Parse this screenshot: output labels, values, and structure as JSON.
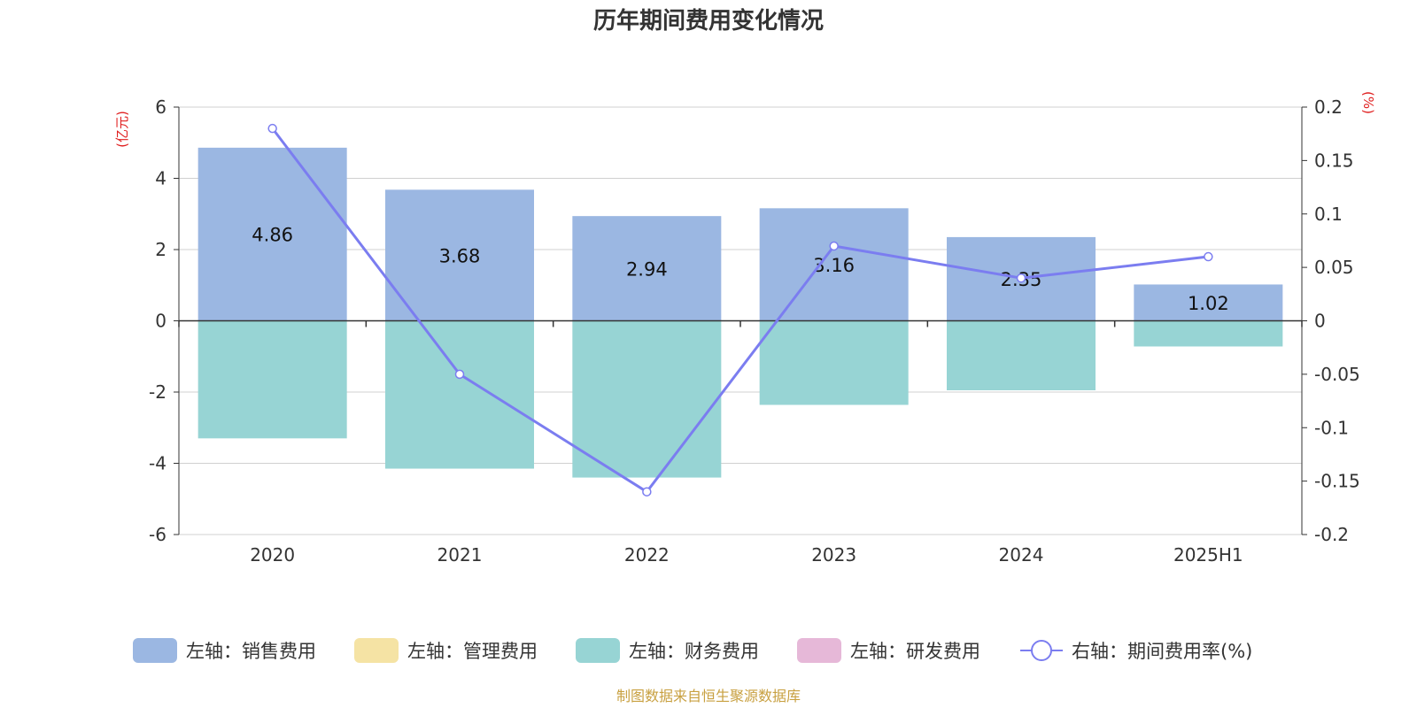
{
  "chart_data": {
    "type": "bar",
    "title": "历年期间费用变化情况",
    "categories": [
      "2020",
      "2021",
      "2022",
      "2023",
      "2024",
      "2025H1"
    ],
    "left_axis": {
      "unit": "(亿元)",
      "ylim": [
        -6,
        6
      ],
      "ticks": [
        6,
        4,
        2,
        0,
        -2,
        -4,
        -6
      ],
      "tick_labels": [
        "6",
        "4",
        "2",
        "0",
        "-2",
        "-4",
        "-6"
      ]
    },
    "right_axis": {
      "unit": "(%)",
      "ylim": [
        -0.2,
        0.2
      ],
      "ticks": [
        0.2,
        0.15,
        0.1,
        0.05,
        0,
        -0.05,
        -0.1,
        -0.15,
        -0.2
      ],
      "tick_labels": [
        "0.2",
        "0.15",
        "0.1",
        "0.05",
        "0",
        "-0.05",
        "-0.1",
        "-0.15",
        "-0.2"
      ]
    },
    "series": [
      {
        "name": "左轴：销售费用",
        "type": "bar",
        "axis": "left",
        "color": "#9bb7e2",
        "values": [
          4.86,
          3.68,
          2.94,
          3.16,
          2.35,
          1.02
        ],
        "labels": [
          "4.86",
          "3.68",
          "2.94",
          "3.16",
          "2.35",
          "1.02"
        ]
      },
      {
        "name": "左轴：管理费用",
        "type": "bar",
        "axis": "left",
        "color": "#f5e3a4",
        "values": [
          0,
          0,
          0,
          0,
          0,
          0
        ]
      },
      {
        "name": "左轴：财务费用",
        "type": "bar",
        "axis": "left",
        "color": "#97d4d4",
        "values": [
          -3.3,
          -4.15,
          -4.4,
          -2.36,
          -1.95,
          -0.72
        ]
      },
      {
        "name": "左轴：研发费用",
        "type": "bar",
        "axis": "left",
        "color": "#e6b8d8",
        "values": [
          0,
          0,
          0,
          0,
          0,
          0
        ]
      },
      {
        "name": "右轴：期间费用率(%)",
        "type": "line",
        "axis": "right",
        "color": "#7b7df0",
        "values": [
          0.18,
          -0.05,
          -0.16,
          0.07,
          0.04,
          0.06
        ]
      }
    ],
    "grid": true,
    "legend_position": "bottom",
    "source": "制图数据来自恒生聚源数据库"
  },
  "colors": {
    "unit": "#e02020",
    "source": "#c8a040",
    "grid": "#d0d0d0",
    "axis": "#333333"
  }
}
